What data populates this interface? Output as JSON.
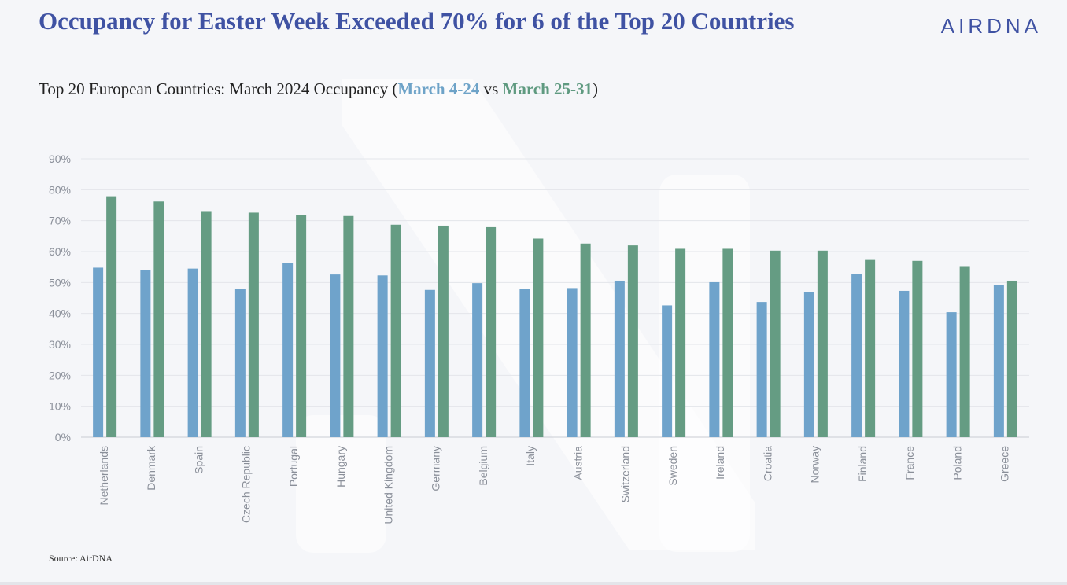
{
  "header": {
    "title": "Occupancy for Easter Week Exceeded 70% for 6 of the Top 20 Countries",
    "subtitle_prefix": "Top 20 European Countries: March 2024 Occupancy (",
    "subtitle_series1": "March 4-24",
    "subtitle_vs": " vs ",
    "subtitle_series2": "March 25-31",
    "subtitle_suffix": ")",
    "logo": "AIRDNA"
  },
  "source": "Source: AirDNA",
  "colors": {
    "series1": "#6fa3cb",
    "series2": "#659c83",
    "title": "#3f52a3"
  },
  "chart_data": {
    "type": "bar",
    "categories": [
      "Netherlands",
      "Denmark",
      "Spain",
      "Czech Republic",
      "Portugal",
      "Hungary",
      "United Kingdom",
      "Germany",
      "Belgium",
      "Italy",
      "Austria",
      "Switzerland",
      "Sweden",
      "Ireland",
      "Croatia",
      "Norway",
      "Finland",
      "France",
      "Poland",
      "Greece"
    ],
    "series": [
      {
        "values": [
          54.8,
          54.0,
          54.5,
          47.9,
          56.2,
          52.6,
          52.3,
          47.6,
          49.8,
          47.9,
          48.2,
          50.6,
          42.6,
          50.1,
          43.7,
          47.0,
          52.8,
          47.3,
          40.4,
          49.2
        ]
      },
      {
        "values": [
          77.9,
          76.2,
          73.1,
          72.6,
          71.8,
          71.5,
          68.7,
          68.4,
          67.9,
          64.2,
          62.6,
          62.0,
          60.9,
          60.9,
          60.3,
          60.3,
          57.3,
          57.0,
          55.3,
          50.6
        ]
      }
    ],
    "ylim": [
      0,
      90
    ],
    "yticks": [
      "0%",
      "10%",
      "20%",
      "30%",
      "40%",
      "50%",
      "60%",
      "70%",
      "80%",
      "90%"
    ],
    "grid": true,
    "legend": "none"
  }
}
